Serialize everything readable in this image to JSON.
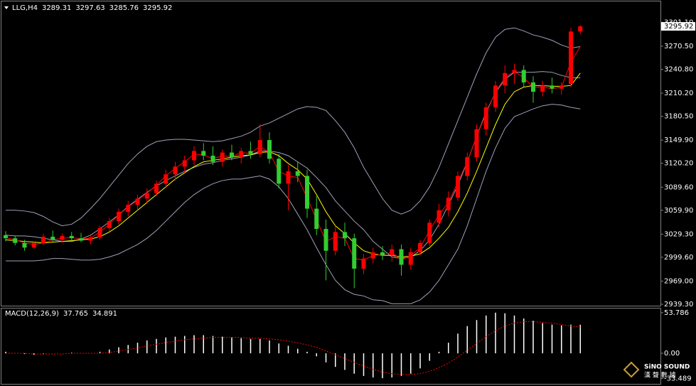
{
  "chart_data": [
    {
      "type": "candlestick",
      "title": "LLG,H4",
      "up_color": "#ff0000",
      "down_color": "#32cd32",
      "open": [
        3028,
        3024,
        3018,
        3012,
        3018,
        3026,
        3022,
        3027,
        3024,
        3021,
        3025,
        3037,
        3046,
        3058,
        3067,
        3075,
        3082,
        3094,
        3106,
        3116,
        3124,
        3136,
        3130,
        3122,
        3134,
        3128,
        3136,
        3132,
        3150,
        3126,
        3094,
        3110,
        3104,
        3062,
        3036,
        3008,
        3032,
        3024,
        2985,
        2998,
        3006,
        3002,
        3010,
        2990,
        3006,
        3018,
        3044,
        3060,
        3076,
        3104,
        3128,
        3164,
        3192,
        3220,
        3236,
        3240,
        3224,
        3212,
        3220,
        3216,
        3222,
        3289.31
      ],
      "high": [
        3033,
        3027,
        3022,
        3020,
        3030,
        3034,
        3030,
        3032,
        3031,
        3028,
        3040,
        3050,
        3062,
        3072,
        3080,
        3088,
        3098,
        3112,
        3122,
        3130,
        3142,
        3146,
        3142,
        3138,
        3144,
        3140,
        3148,
        3170,
        3160,
        3132,
        3118,
        3122,
        3112,
        3078,
        3048,
        3040,
        3044,
        3030,
        3004,
        3012,
        3014,
        3016,
        3016,
        3012,
        3022,
        3048,
        3068,
        3084,
        3110,
        3134,
        3170,
        3198,
        3226,
        3246,
        3248,
        3246,
        3232,
        3226,
        3230,
        3224,
        3294,
        3297.63
      ],
      "low": [
        3020,
        3015,
        3008,
        3010,
        3015,
        3020,
        3018,
        3020,
        3019,
        3016,
        3022,
        3033,
        3042,
        3052,
        3060,
        3068,
        3078,
        3088,
        3098,
        3108,
        3118,
        3124,
        3118,
        3116,
        3124,
        3120,
        3126,
        3128,
        3120,
        3088,
        3060,
        3096,
        3050,
        3028,
        2970,
        3002,
        3014,
        2960,
        2978,
        2992,
        2996,
        2994,
        2976,
        2984,
        3002,
        3014,
        3038,
        3052,
        3072,
        3098,
        3122,
        3156,
        3186,
        3210,
        3222,
        3218,
        3198,
        3206,
        3210,
        3208,
        3218,
        3285.76
      ],
      "close": [
        3024,
        3018,
        3012,
        3018,
        3026,
        3022,
        3027,
        3024,
        3021,
        3025,
        3037,
        3046,
        3058,
        3067,
        3075,
        3082,
        3094,
        3106,
        3116,
        3124,
        3136,
        3130,
        3122,
        3134,
        3128,
        3136,
        3132,
        3150,
        3126,
        3094,
        3110,
        3104,
        3062,
        3036,
        3008,
        3032,
        3024,
        2985,
        2998,
        3006,
        3002,
        3010,
        2990,
        3006,
        3018,
        3044,
        3060,
        3076,
        3104,
        3128,
        3164,
        3192,
        3220,
        3236,
        3240,
        3224,
        3212,
        3220,
        3216,
        3220,
        3289.31,
        3295.92
      ],
      "lines": [
        {
          "color": "#a0a0b8",
          "values": [
            3060,
            3060,
            3059,
            3057,
            3052,
            3045,
            3040,
            3042,
            3050,
            3062,
            3075,
            3090,
            3105,
            3120,
            3132,
            3142,
            3148,
            3150,
            3151,
            3151,
            3150,
            3149,
            3148,
            3149,
            3152,
            3155,
            3160,
            3168,
            3172,
            3178,
            3184,
            3190,
            3193,
            3192,
            3188,
            3175,
            3160,
            3140,
            3115,
            3095,
            3075,
            3060,
            3055,
            3060,
            3072,
            3090,
            3115,
            3145,
            3175,
            3205,
            3235,
            3262,
            3282,
            3292,
            3294,
            3290,
            3285,
            3282,
            3278,
            3272,
            3268,
            3270
          ]
        },
        {
          "color": "#a0a0b8",
          "values": [
            3028,
            3027,
            3027,
            3026,
            3024,
            3022,
            3020,
            3020,
            3023,
            3028,
            3036,
            3045,
            3054,
            3065,
            3074,
            3083,
            3091,
            3098,
            3104,
            3110,
            3115,
            3119,
            3121,
            3124,
            3126,
            3128,
            3131,
            3136,
            3136,
            3134,
            3130,
            3122,
            3114,
            3102,
            3089,
            3072,
            3059,
            3046,
            3035,
            3020,
            3010,
            3000,
            2998,
            3000,
            3008,
            3022,
            3042,
            3067,
            3092,
            3122,
            3155,
            3186,
            3211,
            3228,
            3237,
            3237,
            3237,
            3238,
            3237,
            3233,
            3230,
            3230
          ]
        },
        {
          "color": "#a0a0b8",
          "values": [
            2995,
            2995,
            2995,
            2995,
            2996,
            2998,
            2998,
            2997,
            2996,
            2996,
            2997,
            3000,
            3004,
            3010,
            3016,
            3024,
            3034,
            3046,
            3058,
            3070,
            3080,
            3088,
            3094,
            3098,
            3100,
            3100,
            3102,
            3104,
            3100,
            3090,
            3075,
            3055,
            3035,
            3012,
            2990,
            2970,
            2958,
            2952,
            2950,
            2945,
            2944,
            2940,
            2940,
            2940,
            2945,
            2955,
            2970,
            2990,
            3010,
            3040,
            3075,
            3110,
            3140,
            3165,
            3180,
            3185,
            3190,
            3194,
            3196,
            3195,
            3192,
            3190
          ]
        },
        {
          "color": "#ffff00",
          "values": [
            3022,
            3021,
            3020,
            3019,
            3018,
            3019,
            3020,
            3021,
            3022,
            3023,
            3026,
            3032,
            3040,
            3050,
            3060,
            3070,
            3080,
            3090,
            3100,
            3108,
            3116,
            3122,
            3124,
            3126,
            3128,
            3130,
            3131,
            3134,
            3135,
            3130,
            3120,
            3112,
            3100,
            3080,
            3058,
            3040,
            3030,
            3018,
            3008,
            3004,
            3002,
            3002,
            3000,
            3001,
            3004,
            3012,
            3024,
            3038,
            3058,
            3082,
            3110,
            3140,
            3170,
            3196,
            3212,
            3218,
            3220,
            3220,
            3219,
            3219,
            3220,
            3236
          ]
        },
        {
          "color": "#ff0000",
          "values": [
            3025,
            3022,
            3018,
            3016,
            3018,
            3022,
            3024,
            3025,
            3023,
            3024,
            3032,
            3042,
            3054,
            3064,
            3073,
            3082,
            3092,
            3104,
            3114,
            3122,
            3132,
            3131,
            3126,
            3130,
            3129,
            3134,
            3133,
            3142,
            3134,
            3110,
            3104,
            3102,
            3076,
            3048,
            3020,
            3026,
            3024,
            2998,
            2996,
            3002,
            3003,
            3006,
            2996,
            3002,
            3012,
            3034,
            3054,
            3070,
            3096,
            3122,
            3155,
            3184,
            3212,
            3230,
            3238,
            3230,
            3218,
            3218,
            3216,
            3218,
            3250,
            3270
          ]
        }
      ],
      "ylim": [
        2937.5,
        3325.2
      ],
      "yticks": [
        {
          "value": 3301.1,
          "label": "3301.10"
        },
        {
          "value": 3270.5,
          "label": "3270.50"
        },
        {
          "value": 3240.8,
          "label": "3240.80"
        },
        {
          "value": 3210.2,
          "label": "3210.20"
        },
        {
          "value": 3180.5,
          "label": "3180.50"
        },
        {
          "value": 3149.9,
          "label": "3149.90"
        },
        {
          "value": 3120.2,
          "label": "3120.20"
        },
        {
          "value": 3089.6,
          "label": "3089.60"
        },
        {
          "value": 3059.9,
          "label": "3059.90"
        },
        {
          "value": 3029.3,
          "label": "3029.30"
        },
        {
          "value": 2999.6,
          "label": "2999.60"
        },
        {
          "value": 2969,
          "label": "2969.00"
        },
        {
          "value": 2939.3,
          "label": "2939.30"
        }
      ]
    },
    {
      "type": "macd",
      "title": "MACD(12,26,9)",
      "color": "#ffffff",
      "values": [
        2,
        0,
        -1,
        -2,
        -1,
        0,
        0,
        1,
        0,
        0,
        2,
        5,
        8,
        11,
        14,
        17,
        19,
        21,
        22,
        23,
        24,
        24,
        23,
        22,
        21,
        20,
        19,
        19,
        17,
        13,
        10,
        6,
        2,
        -4,
        -12,
        -18,
        -22,
        -27,
        -30,
        -32,
        -33,
        -32,
        -30,
        -27,
        -20,
        -10,
        2,
        14,
        26,
        36,
        44,
        50,
        53.786,
        53,
        50,
        46,
        43,
        40,
        38,
        37,
        38,
        37.765
      ],
      "signal": {
        "color": "#ff0000",
        "values": [
          0,
          0,
          0,
          -1,
          -1,
          -1,
          -1,
          0,
          0,
          0,
          0,
          1,
          3,
          5,
          7,
          10,
          12,
          14,
          16,
          18,
          19,
          20,
          21,
          21,
          21,
          21,
          20,
          20,
          19,
          18,
          16,
          14,
          11,
          8,
          3,
          -2,
          -7,
          -12,
          -17,
          -21,
          -25,
          -27,
          -28,
          -28,
          -27,
          -24,
          -19,
          -13,
          -5,
          4,
          13,
          22,
          30,
          36,
          40,
          42,
          42,
          41,
          40,
          38,
          36,
          34.891
        ]
      },
      "ylim": [
        -38.6,
        57.4
      ],
      "yticks": [
        53.786,
        {
          "value": 0,
          "label": "0.00"
        },
        -33.489
      ]
    }
  ],
  "watermark": {
    "brand": "SiNO SOUND",
    "sub": "漢 聲 數 據"
  }
}
